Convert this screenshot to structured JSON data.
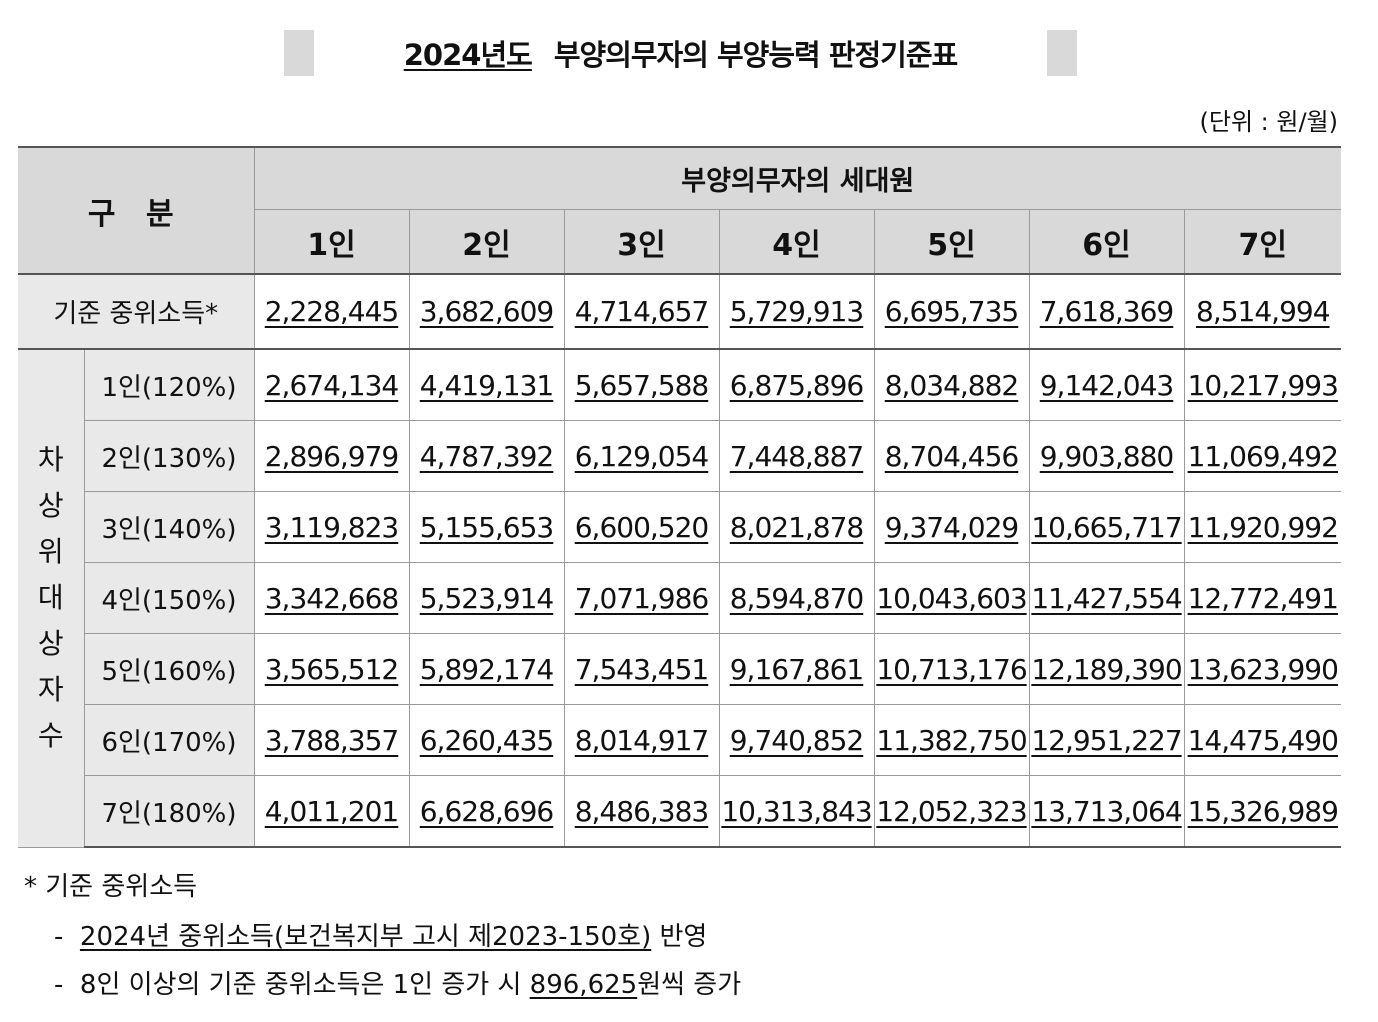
{
  "title": {
    "year": "2024년도",
    "text": "부양의무자의 부양능력 판정기준표"
  },
  "unit": "(단위 : 원/월)",
  "table": {
    "corner_label": "구 분",
    "group_header": "부양의무자의 세대원",
    "columns": [
      "1인",
      "2인",
      "3인",
      "4인",
      "5인",
      "6인",
      "7인"
    ],
    "median": {
      "label": "기준 중위소득*",
      "values": [
        "2,228,445",
        "3,682,609",
        "4,714,657",
        "5,729,913",
        "6,695,735",
        "7,618,369",
        "8,514,994"
      ]
    },
    "vertical_label": [
      "차",
      "상",
      "위",
      "대",
      "상",
      "자",
      "수"
    ],
    "rows": [
      {
        "label": "1인(120%)",
        "values": [
          "2,674,134",
          "4,419,131",
          "5,657,588",
          "6,875,896",
          "8,034,882",
          "9,142,043",
          "10,217,993"
        ]
      },
      {
        "label": "2인(130%)",
        "values": [
          "2,896,979",
          "4,787,392",
          "6,129,054",
          "7,448,887",
          "8,704,456",
          "9,903,880",
          "11,069,492"
        ]
      },
      {
        "label": "3인(140%)",
        "values": [
          "3,119,823",
          "5,155,653",
          "6,600,520",
          "8,021,878",
          "9,374,029",
          "10,665,717",
          "11,920,992"
        ]
      },
      {
        "label": "4인(150%)",
        "values": [
          "3,342,668",
          "5,523,914",
          "7,071,986",
          "8,594,870",
          "10,043,603",
          "11,427,554",
          "12,772,491"
        ]
      },
      {
        "label": "5인(160%)",
        "values": [
          "3,565,512",
          "5,892,174",
          "7,543,451",
          "9,167,861",
          "10,713,176",
          "12,189,390",
          "13,623,990"
        ]
      },
      {
        "label": "6인(170%)",
        "values": [
          "3,788,357",
          "6,260,435",
          "8,014,917",
          "9,740,852",
          "11,382,750",
          "12,951,227",
          "14,475,490"
        ]
      },
      {
        "label": "7인(180%)",
        "values": [
          "4,011,201",
          "6,628,696",
          "8,486,383",
          "10,313,843",
          "12,052,323",
          "13,713,064",
          "15,326,989"
        ]
      }
    ]
  },
  "notes": {
    "heading": "*  기준 중위소득",
    "line1_underlined": "2024년 중위소득(보건복지부 고시 제2023-150호)",
    "line1_suffix": " 반영",
    "line2_prefix": "8인 이상의 기준 중위소득은 1인 증가 시 ",
    "line2_underlined": "896,625",
    "line2_suffix": "원씩 증가",
    "dash": "-"
  }
}
